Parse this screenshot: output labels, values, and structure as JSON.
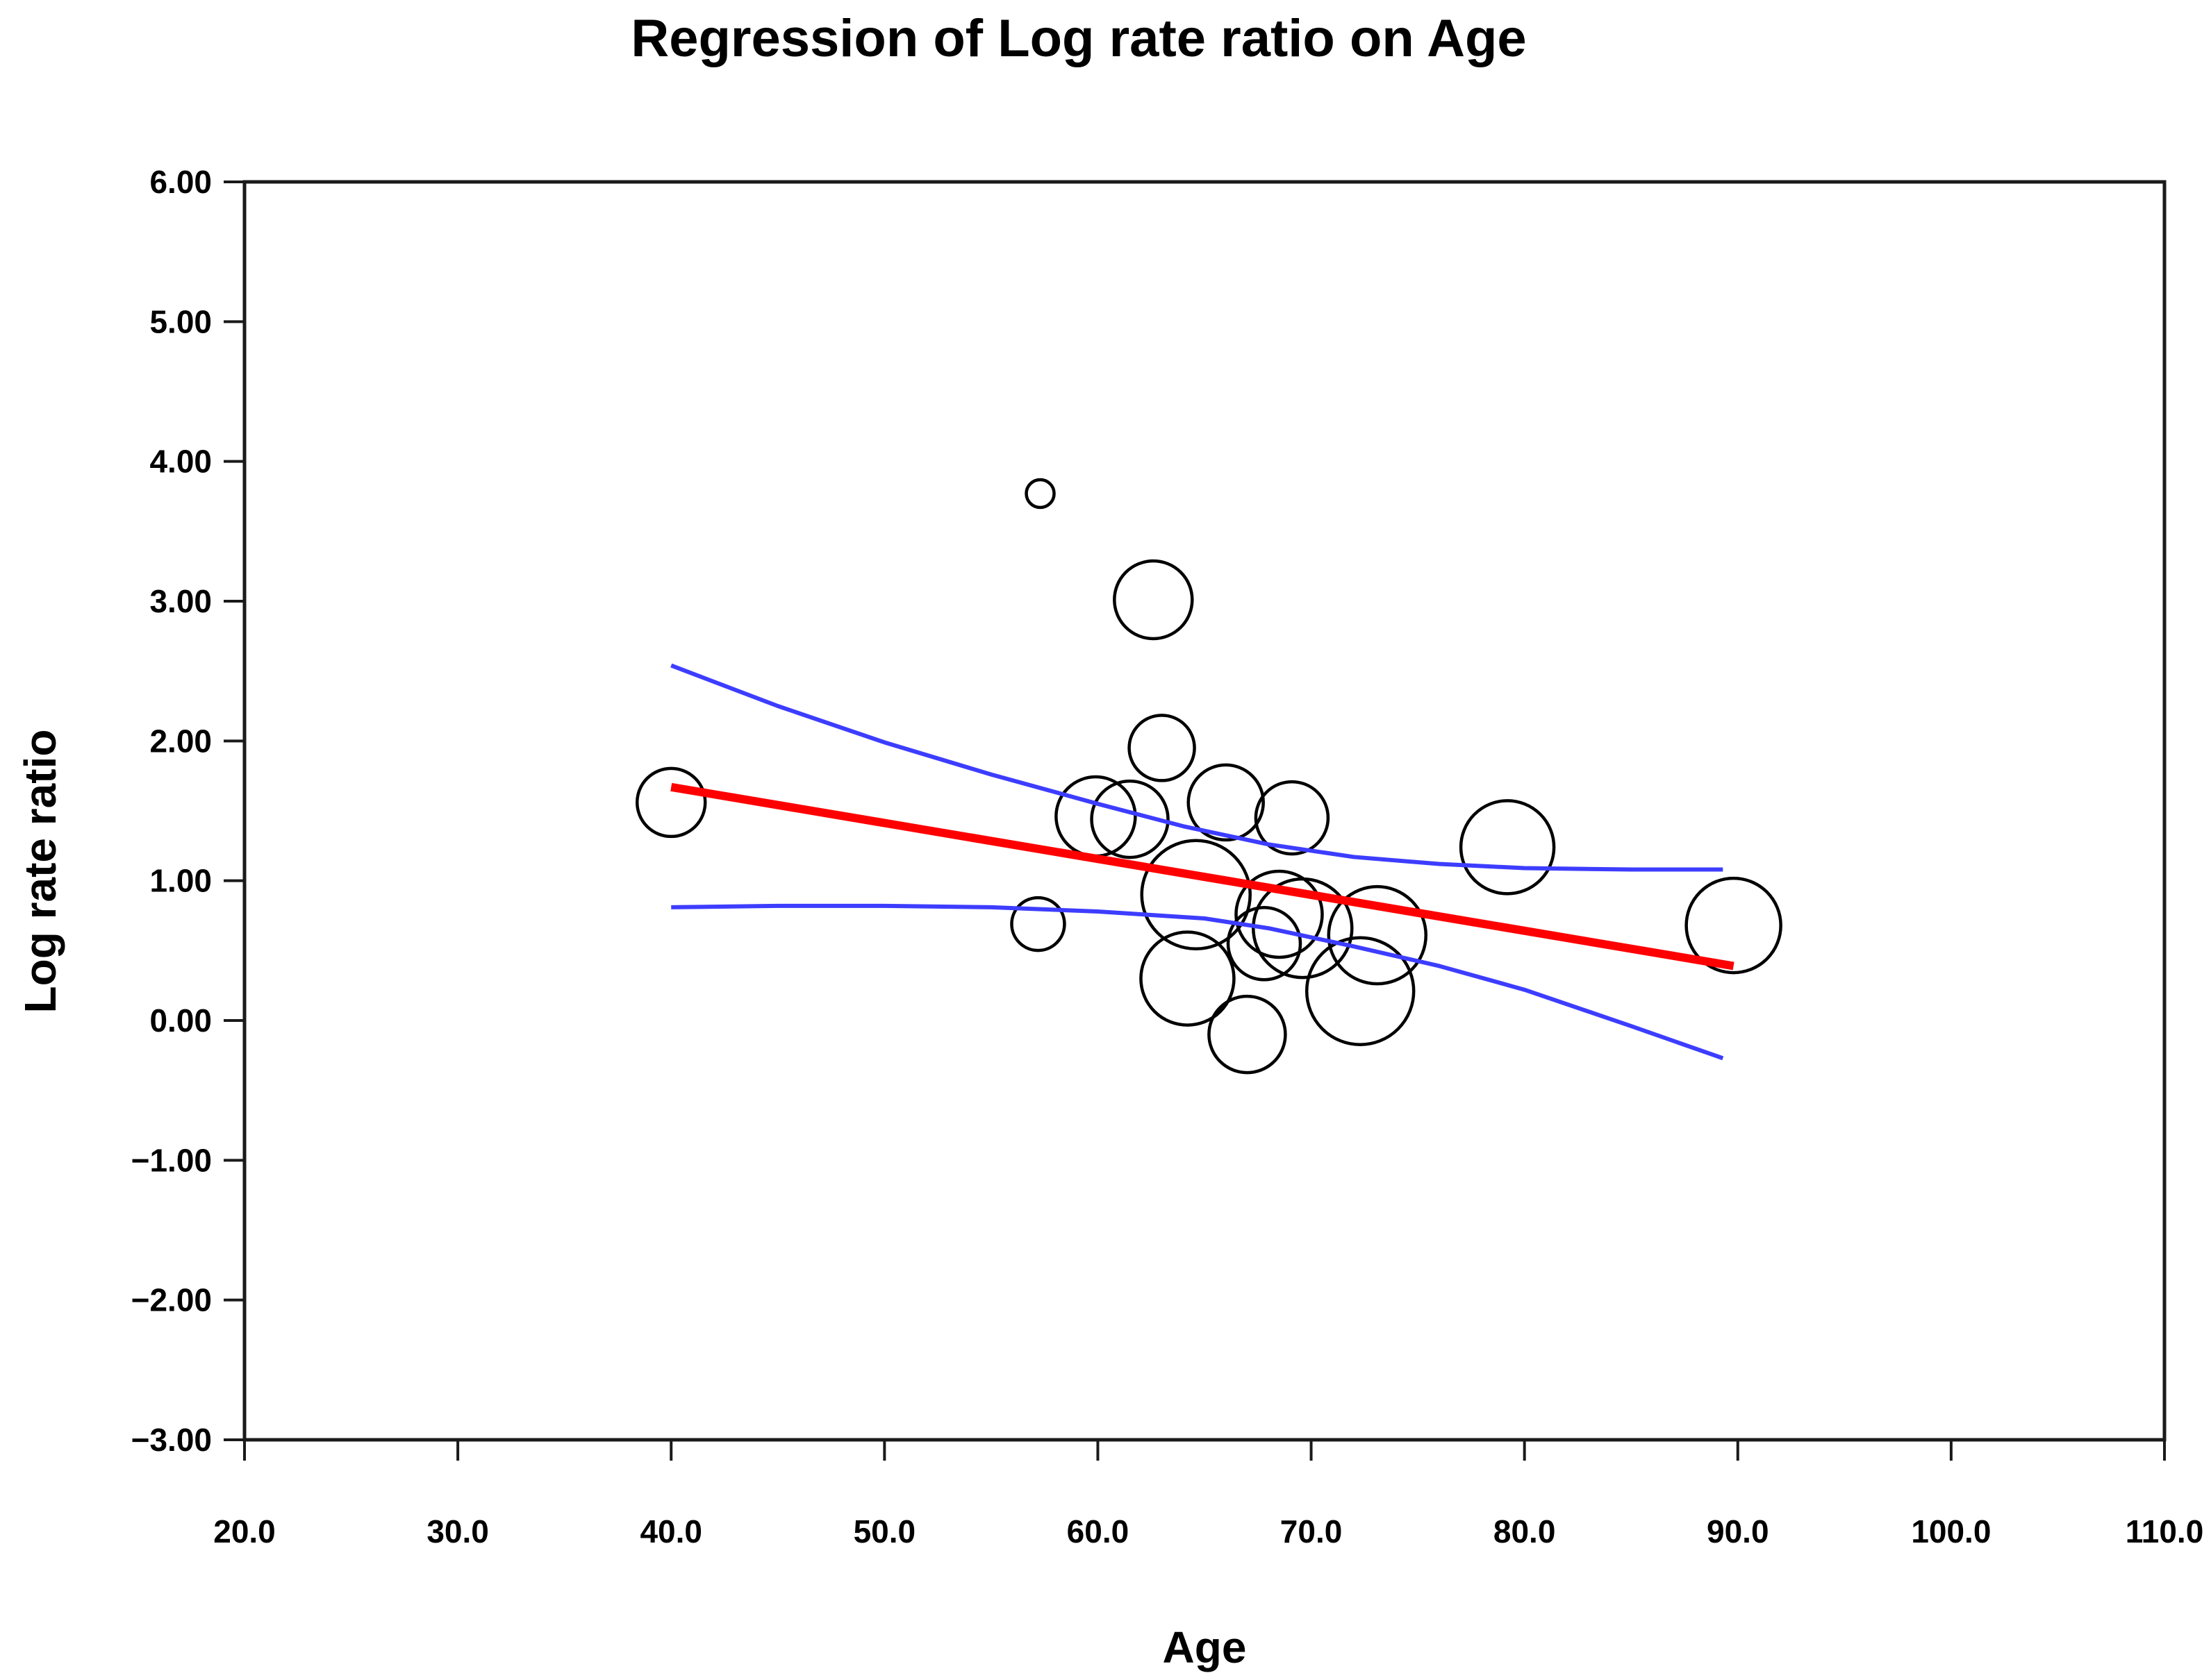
{
  "page": {
    "background": "#ffffff"
  },
  "chart_data": {
    "type": "scatter",
    "subtype": "bubble-meta-regression",
    "title": "Regression of Log rate ratio on Age",
    "xlabel": "Age",
    "ylabel": "Log rate ratio",
    "xlim": [
      20,
      110
    ],
    "ylim": [
      -3,
      6
    ],
    "grid": false,
    "legend": null,
    "x_ticks": [
      {
        "value": 20,
        "label": "20.0"
      },
      {
        "value": 30,
        "label": "30.0"
      },
      {
        "value": 40,
        "label": "40.0"
      },
      {
        "value": 50,
        "label": "50.0"
      },
      {
        "value": 60,
        "label": "60.0"
      },
      {
        "value": 70,
        "label": "70.0"
      },
      {
        "value": 80,
        "label": "80.0"
      },
      {
        "value": 90,
        "label": "90.0"
      },
      {
        "value": 100,
        "label": "100.0"
      },
      {
        "value": 110,
        "label": "110.0"
      }
    ],
    "y_ticks": [
      {
        "value": 6,
        "label": "6.00"
      },
      {
        "value": 5,
        "label": "5.00"
      },
      {
        "value": 4,
        "label": "4.00"
      },
      {
        "value": 3,
        "label": "3.00"
      },
      {
        "value": 2,
        "label": "2.00"
      },
      {
        "value": 1,
        "label": "1.00"
      },
      {
        "value": 0,
        "label": "0.00"
      },
      {
        "value": -1,
        "label": "−1.00"
      },
      {
        "value": -2,
        "label": "−2.00"
      },
      {
        "value": -3,
        "label": "−3.00"
      }
    ],
    "colors": {
      "regression_line": "#ff0000",
      "confidence_band": "#3d3dff",
      "bubble_stroke": "#000000",
      "axis": "#1a1a1a"
    },
    "regression_line": {
      "color": "#ff0000",
      "points": [
        [
          40.0,
          1.67
        ],
        [
          89.8,
          0.39
        ]
      ]
    },
    "ci_upper": {
      "color": "#3d3dff",
      "points": [
        [
          40,
          2.54
        ],
        [
          45,
          2.25
        ],
        [
          50,
          1.99
        ],
        [
          55,
          1.76
        ],
        [
          60,
          1.55
        ],
        [
          64,
          1.39
        ],
        [
          68,
          1.26
        ],
        [
          72,
          1.17
        ],
        [
          76,
          1.12
        ],
        [
          80,
          1.09
        ],
        [
          85,
          1.08
        ],
        [
          89.3,
          1.08
        ]
      ]
    },
    "ci_lower": {
      "color": "#3d3dff",
      "points": [
        [
          40,
          0.81
        ],
        [
          45,
          0.82
        ],
        [
          50,
          0.82
        ],
        [
          55,
          0.81
        ],
        [
          60,
          0.78
        ],
        [
          65,
          0.73
        ],
        [
          68,
          0.66
        ],
        [
          72,
          0.53
        ],
        [
          76,
          0.39
        ],
        [
          80,
          0.22
        ],
        [
          85,
          -0.04
        ],
        [
          89.3,
          -0.27
        ]
      ]
    },
    "bubbles": [
      {
        "age": 57.3,
        "log_rate_ratio": 3.77,
        "r": 20
      },
      {
        "age": 62.6,
        "log_rate_ratio": 3.01,
        "r": 56
      },
      {
        "age": 63.0,
        "log_rate_ratio": 1.95,
        "r": 47
      },
      {
        "age": 40.0,
        "log_rate_ratio": 1.56,
        "r": 49
      },
      {
        "age": 59.9,
        "log_rate_ratio": 1.46,
        "r": 57
      },
      {
        "age": 61.5,
        "log_rate_ratio": 1.44,
        "r": 55
      },
      {
        "age": 66.0,
        "log_rate_ratio": 1.56,
        "r": 54
      },
      {
        "age": 69.1,
        "log_rate_ratio": 1.45,
        "r": 52
      },
      {
        "age": 79.2,
        "log_rate_ratio": 1.24,
        "r": 67
      },
      {
        "age": 89.8,
        "log_rate_ratio": 0.68,
        "r": 68
      },
      {
        "age": 64.6,
        "log_rate_ratio": 0.9,
        "r": 78
      },
      {
        "age": 57.2,
        "log_rate_ratio": 0.69,
        "r": 38
      },
      {
        "age": 68.5,
        "log_rate_ratio": 0.76,
        "r": 62
      },
      {
        "age": 69.6,
        "log_rate_ratio": 0.66,
        "r": 71
      },
      {
        "age": 73.1,
        "log_rate_ratio": 0.61,
        "r": 70
      },
      {
        "age": 67.8,
        "log_rate_ratio": 0.55,
        "r": 52
      },
      {
        "age": 64.2,
        "log_rate_ratio": 0.3,
        "r": 67
      },
      {
        "age": 72.3,
        "log_rate_ratio": 0.21,
        "r": 77
      },
      {
        "age": 67.0,
        "log_rate_ratio": -0.1,
        "r": 55
      }
    ]
  }
}
